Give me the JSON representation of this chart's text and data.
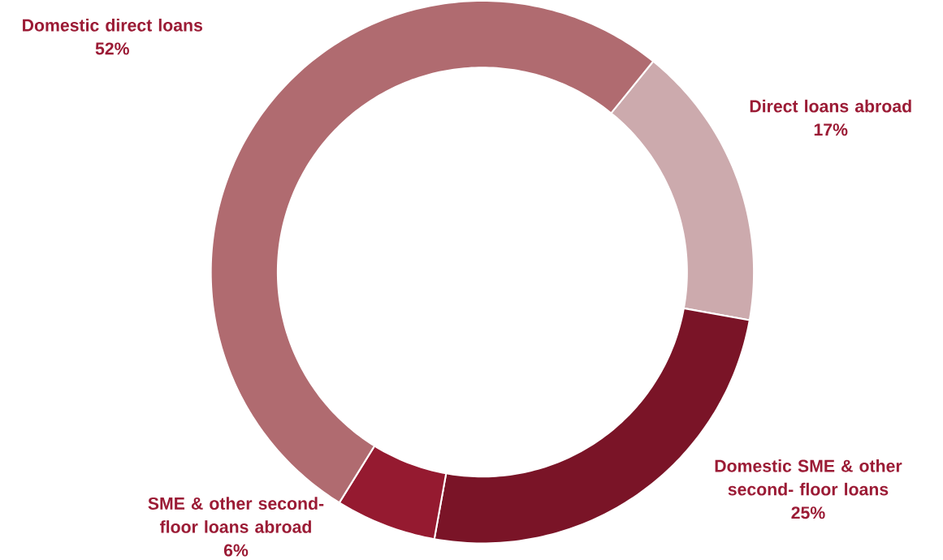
{
  "chart_data": {
    "type": "donut",
    "categories": [
      "Direct loans abroad",
      "Domestic SME & other second- floor loans",
      "SME & other second- floor loans abroad",
      "Domestic direct loans"
    ],
    "values": [
      17,
      25,
      6,
      52
    ],
    "value_labels": [
      "17%",
      "25%",
      "6%",
      "52%"
    ],
    "colors": [
      "#ccaaad",
      "#7a1427",
      "#951a30",
      "#b06b70"
    ]
  }
}
